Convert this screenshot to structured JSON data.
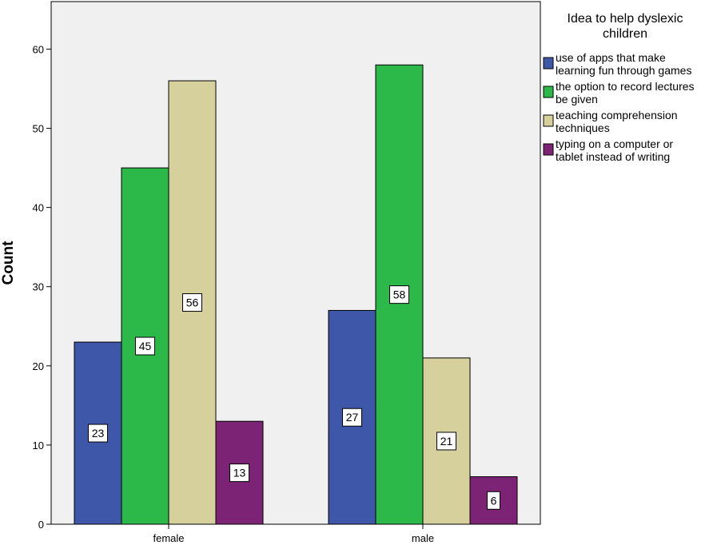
{
  "chart_data": {
    "type": "bar",
    "title": "",
    "xlabel": "",
    "ylabel": "Count",
    "ylim": [
      0,
      66
    ],
    "yticks": [
      0,
      10,
      20,
      30,
      40,
      50,
      60
    ],
    "grid": false,
    "categories": [
      "female",
      "male"
    ],
    "legend_title": "Idea to help dyslexic children",
    "legend_title_lines": [
      "Idea to help dyslexic",
      "children"
    ],
    "legend_position": "right",
    "series": [
      {
        "name": "use of apps that make learning fun through games",
        "label_lines": [
          "use of apps that make",
          "learning fun through games"
        ],
        "color": "#3F57A8",
        "values": [
          23,
          27
        ]
      },
      {
        "name": "the option to record lectures be given",
        "label_lines": [
          "the option to record lectures",
          "be given"
        ],
        "color": "#2DB84A",
        "values": [
          45,
          58
        ]
      },
      {
        "name": "teaching comprehension techniques",
        "label_lines": [
          "teaching comprehension",
          "techniques"
        ],
        "color": "#D5D09C",
        "values": [
          56,
          21
        ]
      },
      {
        "name": "typing on a computer or tablet instead of writing",
        "label_lines": [
          "typing on a computer or",
          "tablet instead of writing"
        ],
        "color": "#7D2375",
        "values": [
          13,
          6
        ]
      }
    ],
    "plot_background": "#F0F0F0"
  }
}
